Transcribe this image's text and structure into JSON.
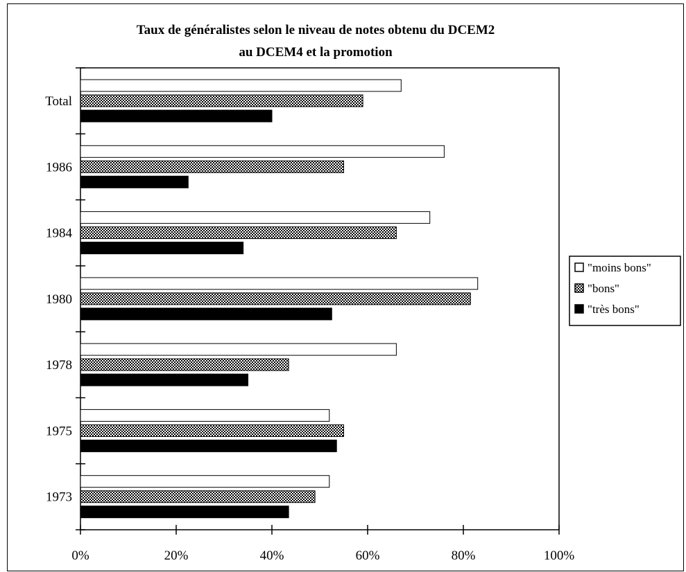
{
  "chart_data": {
    "type": "bar",
    "orientation": "horizontal",
    "title": "Taux de généralistes selon le niveau de notes obtenu du DCEM2",
    "subtitle": "au DCEM4 et la promotion",
    "categories": [
      "Total",
      "1986",
      "1984",
      "1980",
      "1978",
      "1975",
      "1973"
    ],
    "series": [
      {
        "name": "\"moins bons\"",
        "fill": "white",
        "values": [
          67,
          76,
          73,
          83,
          66,
          52,
          52
        ]
      },
      {
        "name": "\"bons\"",
        "fill": "checker",
        "values": [
          59,
          55,
          66,
          81.5,
          43.5,
          55,
          49
        ]
      },
      {
        "name": "\"très bons\"",
        "fill": "black",
        "values": [
          40,
          22.5,
          34,
          52.5,
          35,
          53.5,
          43.5
        ]
      }
    ],
    "x_ticks": [
      "0%",
      "20%",
      "40%",
      "60%",
      "80%",
      "100%"
    ],
    "xlim": [
      0,
      100
    ],
    "grid": false,
    "legend_position": "right"
  },
  "colors": {
    "frame": "#000000",
    "bar_outline": "#000000",
    "background": "#ffffff"
  }
}
